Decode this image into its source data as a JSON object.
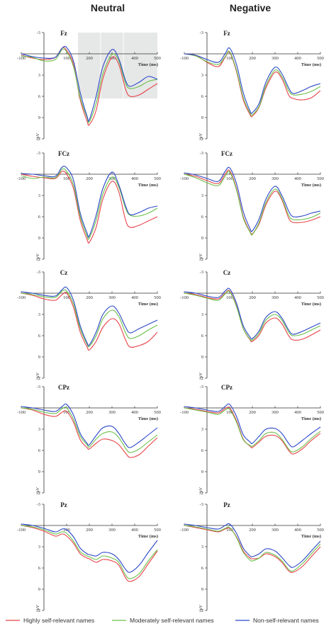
{
  "columns": [
    "Neutral",
    "Negative"
  ],
  "legend": [
    {
      "label": "Highly self-relevant names",
      "color": "#e8434a"
    },
    {
      "label": "Moderately self-relevant names",
      "color": "#6cc04a"
    },
    {
      "label": "Non-self-relevant names",
      "color": "#2b47c8"
    }
  ],
  "chart_data": {
    "type": "line",
    "xlabel": "Time (ms)",
    "ylabel": "μV",
    "xlim": [
      -100,
      500
    ],
    "ylim": [
      -3,
      12
    ],
    "y_inverted": true,
    "xticks": [
      -100,
      100,
      200,
      300,
      400,
      500
    ],
    "yticks": [
      -3,
      3,
      6,
      9,
      12
    ],
    "panels": [
      {
        "condition": "Neutral",
        "title": "Fz",
        "highlight_windows": [
          [
            150,
            250
          ],
          [
            250,
            350
          ],
          [
            350,
            500
          ]
        ],
        "x": [
          -100,
          -50,
          0,
          50,
          80,
          100,
          130,
          160,
          190,
          200,
          230,
          260,
          300,
          330,
          360,
          380,
          420,
          460,
          500
        ],
        "series": [
          {
            "name": "Highly self-relevant names",
            "values": [
              0.2,
              0.6,
              0.8,
              0.5,
              -0.8,
              -0.5,
              1.5,
              6.5,
              9.5,
              10.0,
              8.0,
              3.5,
              0.5,
              1.5,
              5.0,
              6.0,
              5.8,
              5.0,
              4.2
            ]
          },
          {
            "name": "Moderately self-relevant names",
            "values": [
              0.3,
              0.5,
              1.0,
              0.8,
              -0.6,
              -0.3,
              1.8,
              6.2,
              9.0,
              9.6,
              7.0,
              2.8,
              0.1,
              1.0,
              4.2,
              4.9,
              4.6,
              3.9,
              3.6
            ]
          },
          {
            "name": "Non-self-relevant names",
            "values": [
              0.0,
              0.4,
              0.6,
              0.5,
              -0.8,
              -0.9,
              1.0,
              5.5,
              8.8,
              9.3,
              6.0,
              1.8,
              -0.6,
              0.7,
              3.8,
              4.6,
              4.0,
              3.2,
              3.6
            ]
          }
        ]
      },
      {
        "condition": "Negative",
        "title": "Fz",
        "highlight_windows": [],
        "x": [
          -100,
          -50,
          0,
          50,
          80,
          100,
          130,
          160,
          190,
          200,
          230,
          260,
          300,
          330,
          360,
          380,
          420,
          460,
          500
        ],
        "series": [
          {
            "name": "Highly self-relevant names",
            "values": [
              0.0,
              0.2,
              1.2,
              1.8,
              0.5,
              -0.2,
              2.5,
              6.5,
              8.6,
              8.8,
              7.5,
              4.8,
              2.6,
              3.5,
              5.8,
              6.3,
              6.5,
              6.2,
              5.2
            ]
          },
          {
            "name": "Moderately self-relevant names",
            "values": [
              0.0,
              0.3,
              1.1,
              1.5,
              0.4,
              -0.3,
              2.3,
              6.2,
              8.4,
              8.6,
              7.4,
              4.5,
              2.3,
              3.2,
              5.2,
              5.8,
              5.7,
              5.3,
              4.6
            ]
          },
          {
            "name": "Non-self-relevant names",
            "values": [
              0.0,
              0.2,
              0.8,
              1.2,
              0.0,
              -0.8,
              1.5,
              5.5,
              8.1,
              8.3,
              7.0,
              4.0,
              1.9,
              2.8,
              4.8,
              5.6,
              5.2,
              4.6,
              4.2
            ]
          }
        ]
      },
      {
        "condition": "Neutral",
        "title": "FCz",
        "highlight_windows": [],
        "x": [
          -100,
          -50,
          0,
          50,
          80,
          100,
          130,
          160,
          190,
          200,
          230,
          260,
          300,
          330,
          360,
          380,
          420,
          460,
          500
        ],
        "series": [
          {
            "name": "Highly self-relevant names",
            "values": [
              0.0,
              0.3,
              0.5,
              0.6,
              -0.4,
              0.0,
              2.0,
              6.5,
              9.2,
              9.6,
              7.5,
              3.5,
              1.0,
              2.5,
              6.5,
              7.5,
              7.2,
              6.6,
              6.0
            ]
          },
          {
            "name": "Moderately self-relevant names",
            "values": [
              0.2,
              0.6,
              0.4,
              0.5,
              -0.7,
              -0.4,
              1.5,
              6.0,
              8.7,
              9.0,
              6.5,
              2.8,
              0.4,
              1.8,
              4.8,
              5.8,
              5.9,
              5.5,
              4.8
            ]
          },
          {
            "name": "Non-self-relevant names",
            "values": [
              -0.1,
              0.0,
              0.2,
              0.3,
              -1.0,
              -0.9,
              0.8,
              5.5,
              8.3,
              8.7,
              5.8,
              2.0,
              -0.3,
              1.5,
              4.5,
              5.7,
              5.4,
              4.8,
              4.5
            ]
          }
        ]
      },
      {
        "condition": "Negative",
        "title": "FCz",
        "highlight_windows": [],
        "x": [
          -100,
          -50,
          0,
          50,
          80,
          100,
          130,
          160,
          190,
          200,
          230,
          260,
          300,
          330,
          360,
          380,
          420,
          460,
          500
        ],
        "series": [
          {
            "name": "Highly self-relevant names",
            "values": [
              0.0,
              0.3,
              0.9,
              1.3,
              0.0,
              -0.5,
              2.0,
              6.0,
              8.1,
              8.4,
              7.0,
              4.3,
              2.4,
              3.6,
              6.2,
              6.8,
              6.8,
              6.5,
              6.0
            ]
          },
          {
            "name": "Moderately self-relevant names",
            "values": [
              0.0,
              0.5,
              1.2,
              1.6,
              0.3,
              -0.3,
              2.2,
              6.2,
              8.2,
              8.5,
              6.8,
              4.0,
              2.1,
              3.4,
              5.8,
              6.4,
              6.4,
              6.1,
              5.5
            ]
          },
          {
            "name": "Non-self-relevant names",
            "values": [
              -0.2,
              0.1,
              0.6,
              1.0,
              -0.4,
              -0.9,
              1.3,
              5.3,
              7.7,
              8.0,
              6.3,
              3.5,
              1.7,
              3.0,
              5.2,
              6.0,
              5.9,
              5.5,
              5.2
            ]
          }
        ]
      },
      {
        "condition": "Neutral",
        "title": "Cz",
        "highlight_windows": [],
        "x": [
          -100,
          -50,
          0,
          50,
          80,
          100,
          130,
          160,
          190,
          200,
          230,
          260,
          300,
          330,
          360,
          380,
          420,
          460,
          500
        ],
        "series": [
          {
            "name": "Highly self-relevant names",
            "values": [
              0.0,
              0.3,
              0.8,
              1.0,
              0.2,
              0.0,
              2.0,
              5.5,
              7.6,
              8.0,
              6.8,
              4.8,
              3.6,
              4.3,
              6.6,
              7.6,
              7.4,
              6.8,
              5.5
            ]
          },
          {
            "name": "Moderately self-relevant names",
            "values": [
              0.0,
              0.2,
              0.5,
              0.6,
              -0.3,
              -0.3,
              1.5,
              5.0,
              7.2,
              7.5,
              6.0,
              3.6,
              2.4,
              3.3,
              5.6,
              6.4,
              6.0,
              5.2,
              4.5
            ]
          },
          {
            "name": "Non-self-relevant names",
            "values": [
              -0.2,
              0.0,
              0.3,
              0.4,
              -0.5,
              -0.8,
              1.0,
              4.6,
              7.0,
              7.3,
              5.5,
              3.0,
              1.8,
              2.8,
              4.8,
              5.6,
              5.0,
              4.4,
              3.8
            ]
          }
        ]
      },
      {
        "condition": "Negative",
        "title": "Cz",
        "highlight_windows": [],
        "x": [
          -100,
          -50,
          0,
          50,
          80,
          100,
          130,
          160,
          190,
          200,
          230,
          260,
          300,
          330,
          360,
          380,
          420,
          460,
          500
        ],
        "series": [
          {
            "name": "Highly self-relevant names",
            "values": [
              0.0,
              0.2,
              0.6,
              0.8,
              0.0,
              -0.3,
              1.8,
              5.0,
              6.6,
              6.8,
              5.9,
              4.2,
              3.5,
              4.3,
              6.0,
              6.6,
              6.5,
              5.9,
              5.2
            ]
          },
          {
            "name": "Moderately self-relevant names",
            "values": [
              0.0,
              0.3,
              0.7,
              1.0,
              0.1,
              -0.2,
              1.9,
              5.0,
              6.5,
              6.6,
              5.6,
              3.8,
              3.0,
              3.8,
              5.5,
              6.0,
              5.8,
              5.2,
              4.6
            ]
          },
          {
            "name": "Non-self-relevant names",
            "values": [
              -0.2,
              0.0,
              0.4,
              0.6,
              -0.3,
              -0.6,
              1.4,
              4.6,
              6.2,
              6.4,
              5.3,
              3.4,
              2.6,
              3.5,
              5.2,
              5.8,
              5.4,
              4.8,
              4.2
            ]
          }
        ]
      },
      {
        "condition": "Neutral",
        "title": "CPz",
        "highlight_windows": [],
        "x": [
          -100,
          -50,
          0,
          50,
          80,
          100,
          130,
          160,
          190,
          200,
          230,
          260,
          300,
          330,
          360,
          380,
          420,
          460,
          500
        ],
        "series": [
          {
            "name": "Highly self-relevant names",
            "values": [
              0.0,
              0.3,
              0.9,
              1.2,
              0.6,
              0.5,
              2.0,
              4.5,
              5.6,
              5.8,
              5.0,
              4.4,
              4.6,
              5.2,
              6.4,
              7.0,
              6.6,
              5.4,
              4.2
            ]
          },
          {
            "name": "Moderately self-relevant names",
            "values": [
              0.0,
              0.2,
              0.6,
              0.8,
              0.1,
              0.0,
              1.6,
              4.0,
              5.2,
              5.5,
              4.4,
              3.6,
              3.4,
              4.2,
              5.7,
              6.3,
              5.8,
              4.8,
              3.8
            ]
          },
          {
            "name": "Non-self-relevant names",
            "values": [
              -0.2,
              0.0,
              0.3,
              0.5,
              -0.2,
              -0.5,
              1.0,
              3.6,
              5.0,
              5.2,
              3.9,
              2.8,
              2.6,
              3.6,
              5.1,
              5.6,
              4.8,
              3.8,
              2.8
            ]
          }
        ]
      },
      {
        "condition": "Negative",
        "title": "CPz",
        "highlight_windows": [],
        "x": [
          -100,
          -50,
          0,
          50,
          80,
          100,
          130,
          160,
          190,
          200,
          230,
          260,
          300,
          330,
          360,
          380,
          420,
          460,
          500
        ],
        "series": [
          {
            "name": "Highly self-relevant names",
            "values": [
              0.0,
              0.2,
              0.5,
              0.7,
              0.1,
              0.0,
              1.8,
              4.4,
              5.4,
              5.6,
              4.8,
              4.0,
              3.9,
              4.6,
              6.0,
              6.5,
              5.8,
              4.6,
              3.6
            ]
          },
          {
            "name": "Moderately self-relevant names",
            "values": [
              0.0,
              0.3,
              0.6,
              0.9,
              0.3,
              0.2,
              2.0,
              4.5,
              5.3,
              5.4,
              4.6,
              3.6,
              3.5,
              4.4,
              5.8,
              6.2,
              5.5,
              4.3,
              3.3
            ]
          },
          {
            "name": "Non-self-relevant names",
            "values": [
              -0.2,
              0.0,
              0.3,
              0.5,
              -0.2,
              -0.5,
              1.2,
              3.8,
              4.8,
              5.0,
              4.0,
              3.0,
              2.9,
              3.6,
              5.0,
              5.5,
              4.6,
              3.6,
              2.7
            ]
          }
        ]
      },
      {
        "condition": "Neutral",
        "title": "Pz",
        "highlight_windows": [],
        "x": [
          -100,
          -50,
          0,
          50,
          80,
          100,
          130,
          160,
          190,
          200,
          230,
          260,
          300,
          330,
          360,
          380,
          420,
          460,
          500
        ],
        "series": [
          {
            "name": "Highly self-relevant names",
            "values": [
              0.0,
              0.3,
              0.8,
              1.5,
              1.2,
              1.5,
              2.5,
              4.0,
              4.6,
              4.7,
              5.2,
              4.8,
              5.0,
              5.6,
              7.4,
              7.9,
              7.2,
              5.4,
              3.6
            ]
          },
          {
            "name": "Moderately self-relevant names",
            "values": [
              0.0,
              0.2,
              0.6,
              1.2,
              0.9,
              1.1,
              2.2,
              3.7,
              4.3,
              4.4,
              4.8,
              4.3,
              4.6,
              5.2,
              7.0,
              7.5,
              6.8,
              5.0,
              3.4
            ]
          },
          {
            "name": "Non-self-relevant names",
            "values": [
              -0.2,
              0.0,
              0.4,
              0.9,
              0.5,
              0.6,
              1.6,
              3.2,
              4.0,
              4.1,
              4.3,
              3.8,
              4.0,
              4.8,
              6.2,
              6.6,
              5.6,
              3.8,
              2.1
            ]
          }
        ]
      },
      {
        "condition": "Negative",
        "title": "Pz",
        "highlight_windows": [],
        "x": [
          -100,
          -50,
          0,
          50,
          80,
          100,
          130,
          160,
          190,
          200,
          230,
          260,
          300,
          330,
          360,
          380,
          420,
          460,
          500
        ],
        "series": [
          {
            "name": "Highly self-relevant names",
            "values": [
              0.0,
              0.3,
              0.6,
              0.9,
              0.5,
              0.4,
              1.6,
              3.6,
              4.6,
              4.7,
              4.6,
              4.0,
              4.4,
              5.2,
              6.4,
              6.6,
              5.8,
              4.4,
              3.0
            ]
          },
          {
            "name": "Moderately self-relevant names",
            "values": [
              0.0,
              0.2,
              0.5,
              0.8,
              0.4,
              0.3,
              1.7,
              3.8,
              4.9,
              5.0,
              4.6,
              3.8,
              4.2,
              5.0,
              6.2,
              6.4,
              5.4,
              4.0,
              2.6
            ]
          },
          {
            "name": "Non-self-relevant names",
            "values": [
              -0.2,
              0.0,
              0.3,
              0.5,
              0.0,
              -0.2,
              1.1,
              3.2,
              4.3,
              4.4,
              4.0,
              3.3,
              3.6,
              4.5,
              5.6,
              5.9,
              5.0,
              3.6,
              2.2
            ]
          }
        ]
      }
    ]
  }
}
